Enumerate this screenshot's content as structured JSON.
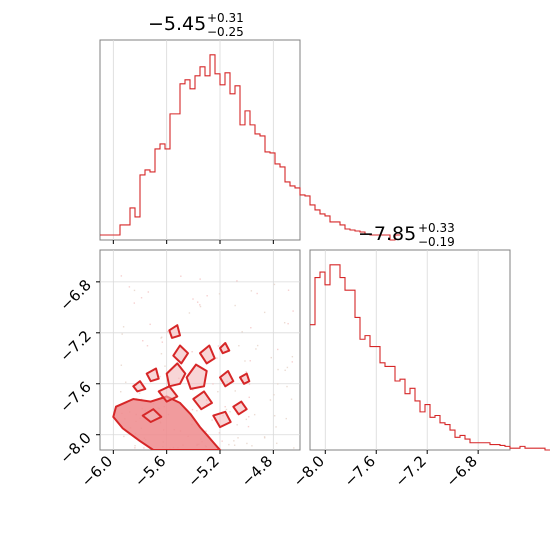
{
  "chart_data": [
    {
      "type": "histogram",
      "panel": "marginal-x",
      "title_value": "−5.45",
      "title_plus": "+0.31",
      "title_minus": "−0.25",
      "xlim": [
        -6.1,
        -4.6
      ],
      "bin_start": -6.1,
      "bin_width": 0.0375,
      "counts": [
        0.5,
        0.5,
        0.5,
        0.5,
        1.5,
        1.5,
        3.2,
        2.3,
        6.5,
        7.0,
        6.8,
        9.1,
        9.6,
        9.1,
        12.6,
        12.6,
        15.6,
        16.0,
        15.1,
        16.4,
        17.3,
        16.4,
        18.5,
        16.6,
        15.5,
        16.7,
        14.6,
        15.4,
        11.5,
        12.9,
        11.5,
        10.6,
        10.4,
        8.8,
        8.7,
        7.6,
        7.3,
        5.8,
        5.4,
        5.2,
        4.5,
        4.4,
        3.5,
        3.0,
        2.6,
        2.4,
        1.8,
        1.8,
        1.5,
        1.1,
        1.0,
        0.9,
        0.8,
        0.6,
        0.5,
        0.5,
        0.5,
        0.5,
        0.0,
        0.5
      ],
      "xticks": [
        -6.0,
        -5.6,
        -5.2,
        -4.8
      ],
      "color": "#d62728"
    },
    {
      "type": "contour",
      "panel": "joint",
      "xlim": [
        -6.1,
        -4.6
      ],
      "ylim": [
        -8.12,
        -6.55
      ],
      "xticks": [
        -6.0,
        -5.6,
        -5.2,
        -4.8
      ],
      "xtick_labels": [
        "−6.0",
        "−5.6",
        "−5.2",
        "−4.8"
      ],
      "yticks": [
        -6.8,
        -7.2,
        -7.6,
        -8.0
      ],
      "ytick_labels": [
        "−6.8",
        "−7.2",
        "−7.6",
        "−8.0"
      ],
      "core_region": [
        [
          -5.98,
          -7.78
        ],
        [
          -5.85,
          -7.72
        ],
        [
          -5.72,
          -7.74
        ],
        [
          -5.6,
          -7.7
        ],
        [
          -5.5,
          -7.75
        ],
        [
          -5.42,
          -7.84
        ],
        [
          -5.35,
          -7.94
        ],
        [
          -5.3,
          -8.0
        ],
        [
          -5.25,
          -8.06
        ],
        [
          -5.2,
          -8.12
        ],
        [
          -5.7,
          -8.12
        ],
        [
          -5.8,
          -8.05
        ],
        [
          -5.93,
          -7.95
        ],
        [
          -6.0,
          -7.86
        ]
      ],
      "contours": [
        [
          [
            -5.6,
            -7.52
          ],
          [
            -5.52,
            -7.44
          ],
          [
            -5.46,
            -7.52
          ],
          [
            -5.5,
            -7.6
          ],
          [
            -5.58,
            -7.62
          ]
        ],
        [
          [
            -5.45,
            -7.55
          ],
          [
            -5.38,
            -7.45
          ],
          [
            -5.3,
            -7.5
          ],
          [
            -5.32,
            -7.62
          ],
          [
            -5.42,
            -7.64
          ]
        ],
        [
          [
            -5.66,
            -7.66
          ],
          [
            -5.58,
            -7.62
          ],
          [
            -5.52,
            -7.7
          ],
          [
            -5.6,
            -7.74
          ]
        ],
        [
          [
            -5.4,
            -7.72
          ],
          [
            -5.32,
            -7.66
          ],
          [
            -5.26,
            -7.75
          ],
          [
            -5.34,
            -7.8
          ]
        ],
        [
          [
            -5.55,
            -7.38
          ],
          [
            -5.5,
            -7.3
          ],
          [
            -5.44,
            -7.36
          ],
          [
            -5.49,
            -7.44
          ]
        ],
        [
          [
            -5.35,
            -7.36
          ],
          [
            -5.28,
            -7.3
          ],
          [
            -5.24,
            -7.4
          ],
          [
            -5.3,
            -7.44
          ]
        ],
        [
          [
            -5.58,
            -7.18
          ],
          [
            -5.52,
            -7.14
          ],
          [
            -5.5,
            -7.22
          ],
          [
            -5.56,
            -7.24
          ]
        ],
        [
          [
            -5.75,
            -7.52
          ],
          [
            -5.68,
            -7.48
          ],
          [
            -5.66,
            -7.56
          ],
          [
            -5.72,
            -7.58
          ]
        ],
        [
          [
            -5.2,
            -7.55
          ],
          [
            -5.14,
            -7.5
          ],
          [
            -5.1,
            -7.58
          ],
          [
            -5.16,
            -7.62
          ]
        ],
        [
          [
            -5.25,
            -7.85
          ],
          [
            -5.16,
            -7.82
          ],
          [
            -5.12,
            -7.9
          ],
          [
            -5.2,
            -7.94
          ]
        ],
        [
          [
            -5.1,
            -7.78
          ],
          [
            -5.04,
            -7.74
          ],
          [
            -5.0,
            -7.8
          ],
          [
            -5.06,
            -7.84
          ]
        ],
        [
          [
            -5.78,
            -7.85
          ],
          [
            -5.7,
            -7.8
          ],
          [
            -5.64,
            -7.86
          ],
          [
            -5.72,
            -7.9
          ]
        ],
        [
          [
            -5.85,
            -7.62
          ],
          [
            -5.8,
            -7.58
          ],
          [
            -5.76,
            -7.64
          ],
          [
            -5.82,
            -7.66
          ]
        ],
        [
          [
            -5.05,
            -7.55
          ],
          [
            -5.0,
            -7.52
          ],
          [
            -4.98,
            -7.58
          ],
          [
            -5.02,
            -7.6
          ]
        ],
        [
          [
            -5.2,
            -7.32
          ],
          [
            -5.16,
            -7.28
          ],
          [
            -5.13,
            -7.34
          ],
          [
            -5.18,
            -7.36
          ]
        ]
      ],
      "color": "#d62728"
    },
    {
      "type": "histogram",
      "panel": "marginal-y",
      "title_value": "−7.85",
      "title_plus": "+0.33",
      "title_minus": "−0.19",
      "xlim": [
        -8.12,
        -6.55
      ],
      "bin_start": -8.12,
      "bin_width": 0.03925,
      "counts": [
        6.9,
        9.5,
        9.8,
        9.1,
        10.2,
        10.2,
        9.5,
        8.8,
        8.8,
        7.3,
        6.1,
        6.3,
        5.7,
        5.7,
        4.8,
        4.6,
        4.6,
        3.8,
        3.9,
        3.1,
        3.4,
        2.7,
        2.1,
        2.5,
        1.8,
        1.9,
        1.5,
        1.4,
        1.1,
        0.7,
        0.8,
        0.6,
        0.4,
        0.4,
        0.4,
        0.4,
        0.3,
        0.3,
        0.25,
        0.2,
        0.1,
        0.1,
        0.2,
        0.1,
        0.1,
        0.1,
        0.1,
        0.0,
        0.0,
        0.1
      ],
      "xticks": [
        -8.0,
        -7.6,
        -7.2,
        -6.8
      ],
      "xtick_labels": [
        "−8.0",
        "−7.6",
        "−7.2",
        "−6.8"
      ],
      "color": "#d62728"
    }
  ]
}
